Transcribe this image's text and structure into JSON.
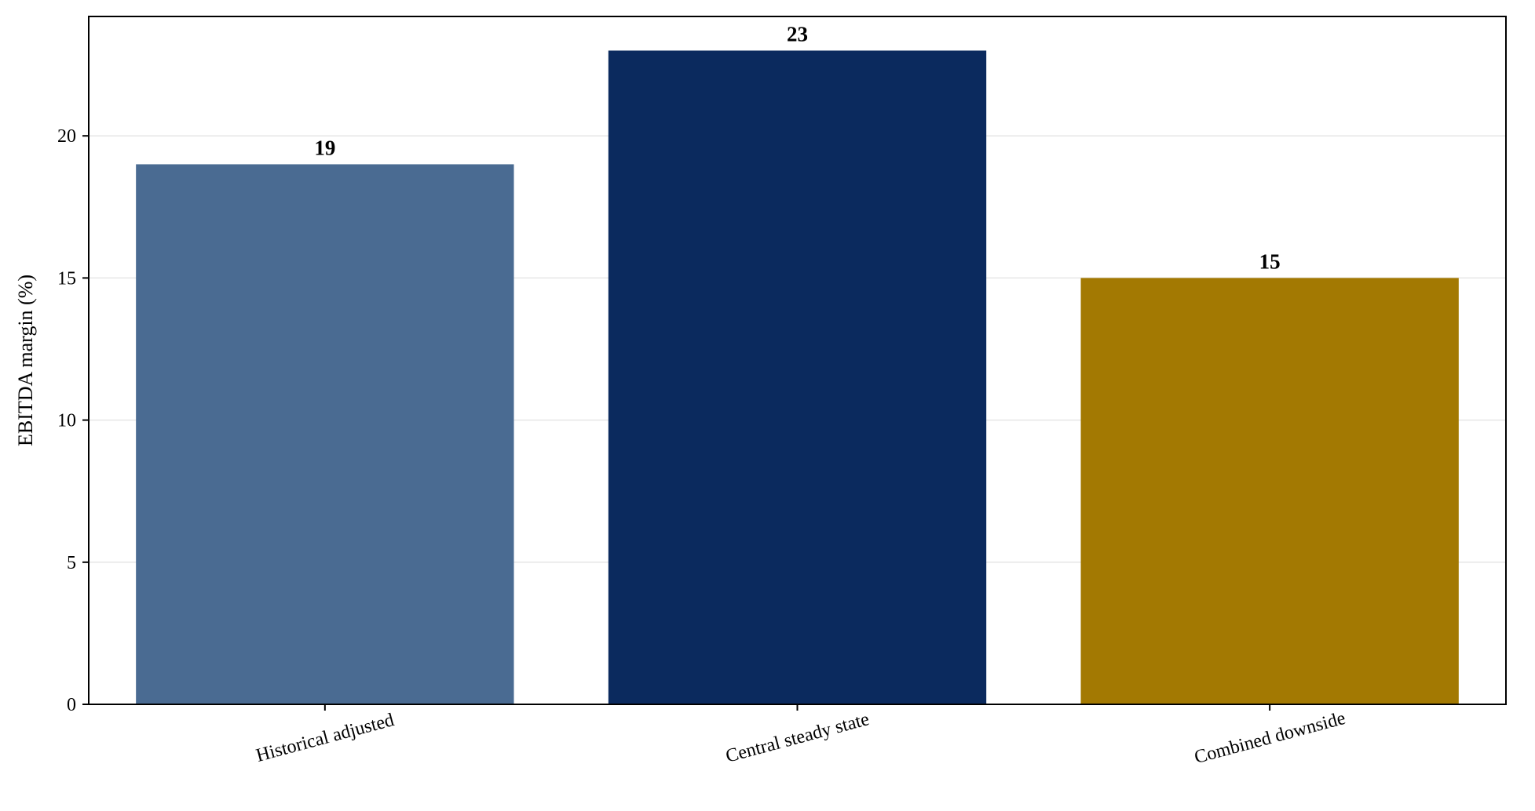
{
  "chart_data": {
    "type": "bar",
    "title": "",
    "xlabel": "",
    "ylabel": "EBITDA margin (%)",
    "categories": [
      "Historical adjusted",
      "Central steady state",
      "Combined downside"
    ],
    "values": [
      19,
      23,
      15
    ],
    "value_labels": [
      "19",
      "23",
      "15"
    ],
    "colors": [
      "#4a6b92",
      "#0b2a5e",
      "#a37902"
    ],
    "ylim": [
      0,
      24.2
    ],
    "yticks": [
      0,
      5,
      10,
      15,
      20
    ],
    "ytick_labels": [
      "0",
      "5",
      "10",
      "15",
      "20"
    ],
    "grid": true,
    "grid_axis": "y",
    "legend": "none"
  }
}
